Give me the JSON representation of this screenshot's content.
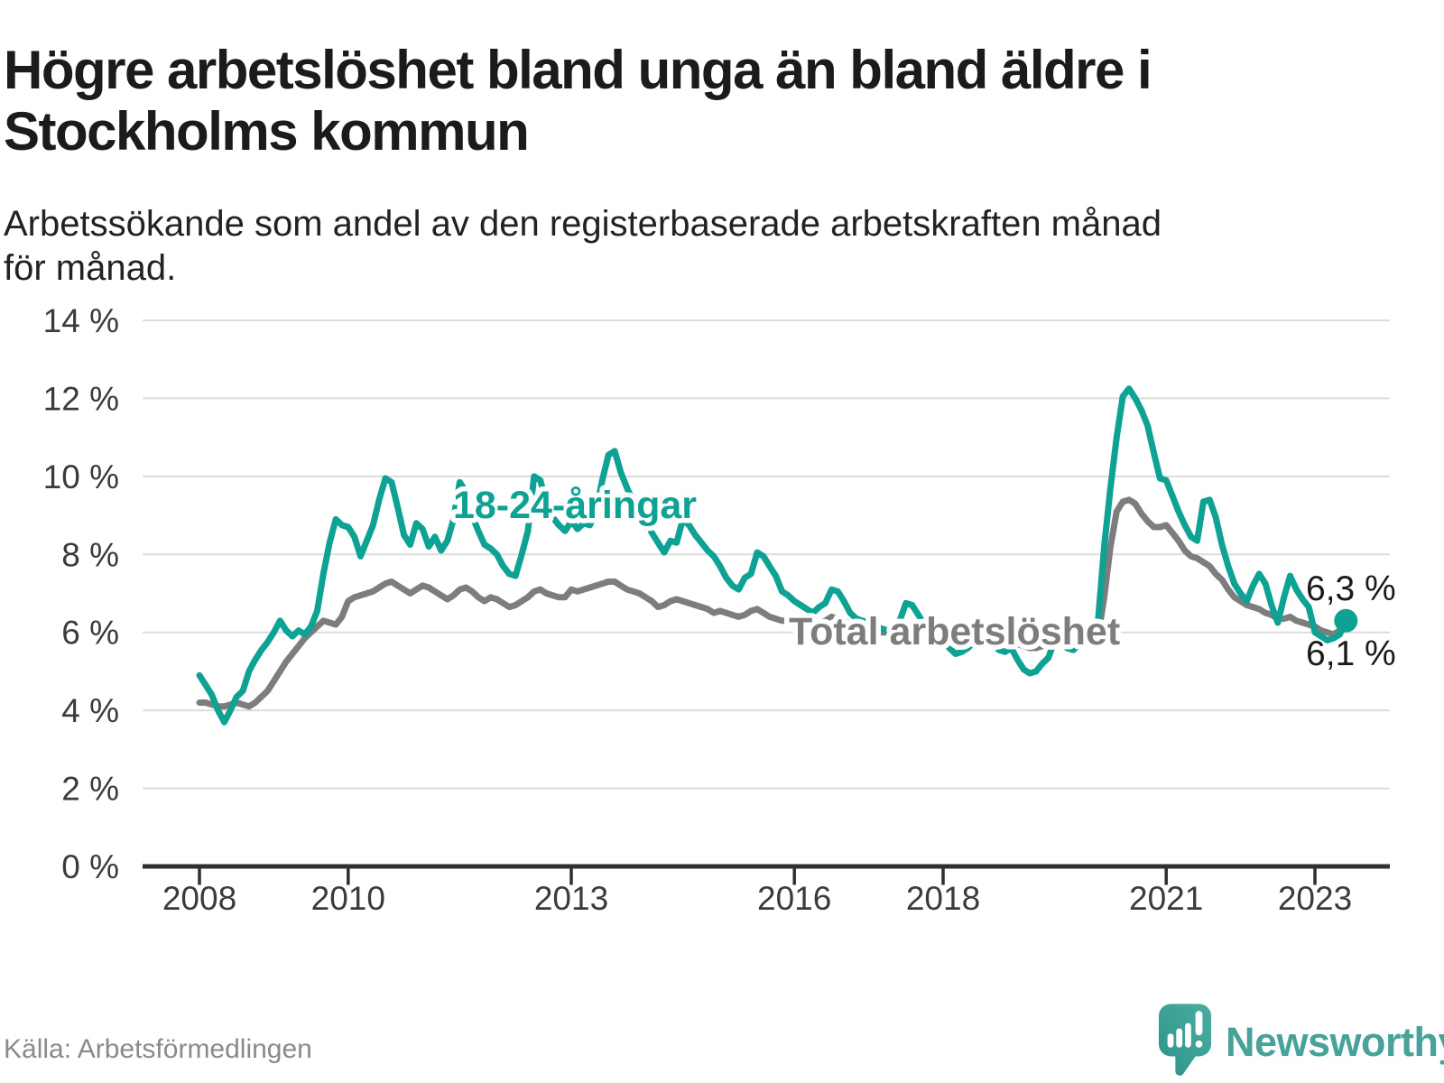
{
  "header": {
    "title": "Högre arbetslöshet bland unga än bland äldre i\nStockholms kommun",
    "subtitle": "Arbetssökande som andel av den registerbaserade arbetskraften månad\nför månad."
  },
  "footer": {
    "source": "Källa: Arbetsförmedlingen",
    "brand": "Newsworthy"
  },
  "colors": {
    "accent_teal": "#0da294",
    "line_gray": "#7d7d7d",
    "grid": "#dcdcdc",
    "axis": "#2f2f2f",
    "tick_text": "#3b3b3b",
    "value_text": "#1a1a1a",
    "brand_teal": "#47a39a"
  },
  "chart_data": {
    "type": "line",
    "unit": "%",
    "x_start_year": 2008,
    "points_per_year": 12,
    "x_ticks": [
      2008,
      2010,
      2013,
      2016,
      2018,
      2021,
      2023
    ],
    "x_tick_labels": [
      "2008",
      "2010",
      "2013",
      "2016",
      "2018",
      "2021",
      "2023"
    ],
    "y_ticks": [
      0,
      2,
      4,
      6,
      8,
      10,
      12,
      14
    ],
    "y_tick_labels": [
      "0 %",
      "2 %",
      "4 %",
      "6 %",
      "8 %",
      "10 %",
      "12 %",
      "14 %"
    ],
    "ylim": [
      0,
      14.5
    ],
    "grid": true,
    "legend": "inline-labels",
    "series": [
      {
        "name": "Total arbetslöshet",
        "color": "#7d7d7d",
        "end_label": "6,1 %",
        "values": [
          4.2,
          4.2,
          4.15,
          4.1,
          4.1,
          4.15,
          4.2,
          4.15,
          4.1,
          4.2,
          4.35,
          4.5,
          4.75,
          5.0,
          5.25,
          5.45,
          5.65,
          5.85,
          6.0,
          6.15,
          6.3,
          6.25,
          6.2,
          6.4,
          6.8,
          6.9,
          6.95,
          7.0,
          7.05,
          7.15,
          7.25,
          7.3,
          7.2,
          7.1,
          7.0,
          7.1,
          7.2,
          7.15,
          7.05,
          6.95,
          6.85,
          6.95,
          7.1,
          7.15,
          7.05,
          6.9,
          6.8,
          6.9,
          6.85,
          6.75,
          6.65,
          6.7,
          6.8,
          6.9,
          7.05,
          7.1,
          7.0,
          6.95,
          6.9,
          6.9,
          7.1,
          7.05,
          7.1,
          7.15,
          7.2,
          7.25,
          7.3,
          7.3,
          7.2,
          7.1,
          7.05,
          7.0,
          6.9,
          6.8,
          6.65,
          6.7,
          6.8,
          6.85,
          6.8,
          6.75,
          6.7,
          6.65,
          6.6,
          6.5,
          6.55,
          6.5,
          6.45,
          6.4,
          6.45,
          6.55,
          6.6,
          6.5,
          6.4,
          6.35,
          6.3,
          6.3,
          6.3,
          6.25,
          6.2,
          6.2,
          6.25,
          6.3,
          6.4,
          6.35,
          6.3,
          6.2,
          6.15,
          6.1,
          6.1,
          6.05,
          6.0,
          6.0,
          6.05,
          6.1,
          6.2,
          6.15,
          6.1,
          6.0,
          5.95,
          5.9,
          5.9,
          5.85,
          5.8,
          5.8,
          5.85,
          5.9,
          6.0,
          5.95,
          5.85,
          5.75,
          5.7,
          5.7,
          5.7,
          5.65,
          5.6,
          5.6,
          5.65,
          5.7,
          5.8,
          5.75,
          5.7,
          5.65,
          5.7,
          5.75,
          5.8,
          5.9,
          6.9,
          8.2,
          9.1,
          9.35,
          9.4,
          9.3,
          9.05,
          8.85,
          8.7,
          8.7,
          8.75,
          8.55,
          8.35,
          8.1,
          7.95,
          7.9,
          7.8,
          7.7,
          7.5,
          7.35,
          7.1,
          6.9,
          6.8,
          6.7,
          6.65,
          6.6,
          6.5,
          6.45,
          6.35,
          6.35,
          6.4,
          6.3,
          6.25,
          6.2,
          6.15,
          6.05,
          6.0,
          5.95,
          6.05,
          6.1
        ]
      },
      {
        "name": "18-24-åringar",
        "color": "#0da294",
        "end_label": "6,3 %",
        "end_dot": true,
        "values": [
          4.9,
          4.65,
          4.4,
          4.0,
          3.7,
          4.0,
          4.35,
          4.5,
          5.0,
          5.3,
          5.55,
          5.75,
          6.0,
          6.3,
          6.05,
          5.9,
          6.05,
          5.95,
          6.15,
          6.55,
          7.5,
          8.3,
          8.9,
          8.75,
          8.7,
          8.45,
          7.95,
          8.35,
          8.75,
          9.4,
          9.95,
          9.85,
          9.2,
          8.5,
          8.25,
          8.8,
          8.65,
          8.2,
          8.45,
          8.1,
          8.35,
          8.9,
          9.85,
          9.6,
          9.0,
          8.6,
          8.25,
          8.15,
          8.0,
          7.7,
          7.5,
          7.45,
          8.0,
          8.6,
          10.0,
          9.9,
          9.3,
          8.95,
          8.75,
          8.6,
          8.85,
          8.65,
          8.8,
          8.75,
          9.1,
          9.9,
          10.55,
          10.65,
          10.1,
          9.7,
          9.35,
          9.1,
          8.9,
          8.55,
          8.3,
          8.05,
          8.35,
          8.3,
          8.9,
          8.75,
          8.5,
          8.3,
          8.1,
          7.95,
          7.7,
          7.4,
          7.2,
          7.1,
          7.4,
          7.5,
          8.05,
          7.95,
          7.7,
          7.45,
          7.05,
          6.95,
          6.8,
          6.7,
          6.6,
          6.5,
          6.65,
          6.75,
          7.1,
          7.05,
          6.8,
          6.5,
          6.35,
          6.3,
          6.25,
          6.2,
          6.1,
          6.05,
          6.2,
          6.3,
          6.75,
          6.7,
          6.45,
          6.2,
          6.05,
          5.95,
          5.8,
          5.6,
          5.45,
          5.5,
          5.6,
          5.75,
          6.15,
          6.1,
          5.85,
          5.55,
          5.5,
          5.6,
          5.3,
          5.05,
          4.95,
          5.0,
          5.2,
          5.35,
          5.8,
          5.75,
          5.6,
          5.55,
          5.7,
          5.9,
          6.1,
          6.3,
          8.2,
          9.7,
          11.0,
          12.05,
          12.25,
          12.0,
          11.7,
          11.3,
          10.6,
          9.95,
          9.9,
          9.5,
          9.1,
          8.75,
          8.45,
          8.35,
          9.35,
          9.4,
          8.95,
          8.25,
          7.7,
          7.25,
          7.0,
          6.8,
          7.2,
          7.5,
          7.25,
          6.7,
          6.25,
          6.9,
          7.45,
          7.1,
          6.85,
          6.65,
          6.0,
          5.9,
          5.8,
          5.85,
          5.95,
          6.3
        ]
      }
    ]
  }
}
